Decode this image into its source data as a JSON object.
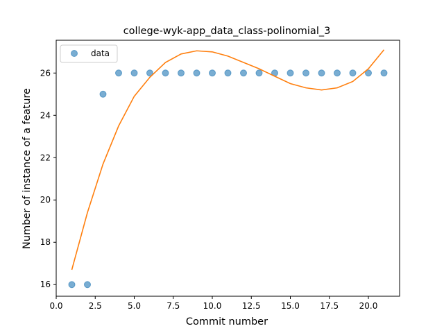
{
  "chart_data": {
    "type": "scatter",
    "title": "college-wyk-app_data_class-polinomial_3",
    "xlabel": "Commit number",
    "ylabel": "Number of instance of a feature",
    "xlim": [
      0.0,
      22.0
    ],
    "ylim": [
      15.45,
      27.55
    ],
    "xticks": [
      0.0,
      2.5,
      5.0,
      7.5,
      10.0,
      12.5,
      15.0,
      17.5,
      20.0
    ],
    "xtick_labels": [
      "0.0",
      "2.5",
      "5.0",
      "7.5",
      "10.0",
      "12.5",
      "15.0",
      "17.5",
      "20.0"
    ],
    "yticks": [
      16,
      18,
      20,
      22,
      24,
      26
    ],
    "ytick_labels": [
      "16",
      "18",
      "20",
      "22",
      "24",
      "26"
    ],
    "grid": false,
    "legend": {
      "position": "upper-left",
      "entries": [
        "data"
      ]
    },
    "series": [
      {
        "name": "data",
        "kind": "scatter",
        "color": "#1f77b4",
        "x": [
          1,
          2,
          3,
          4,
          5,
          6,
          7,
          8,
          9,
          10,
          11,
          12,
          13,
          14,
          15,
          16,
          17,
          18,
          19,
          20,
          21
        ],
        "y": [
          16,
          16,
          25,
          26,
          26,
          26,
          26,
          26,
          26,
          26,
          26,
          26,
          26,
          26,
          26,
          26,
          26,
          26,
          26,
          26,
          26
        ]
      },
      {
        "kind": "line",
        "color": "#ff7f0e",
        "x": [
          1,
          2,
          3,
          4,
          5,
          6,
          7,
          8,
          9,
          10,
          11,
          12,
          13,
          14,
          15,
          16,
          17,
          18,
          19,
          20,
          21
        ],
        "y": [
          16.7,
          19.4,
          21.7,
          23.5,
          24.9,
          25.8,
          26.5,
          26.9,
          27.05,
          27.0,
          26.8,
          26.5,
          26.2,
          25.85,
          25.5,
          25.3,
          25.2,
          25.3,
          25.6,
          26.2,
          27.1
        ]
      }
    ]
  }
}
